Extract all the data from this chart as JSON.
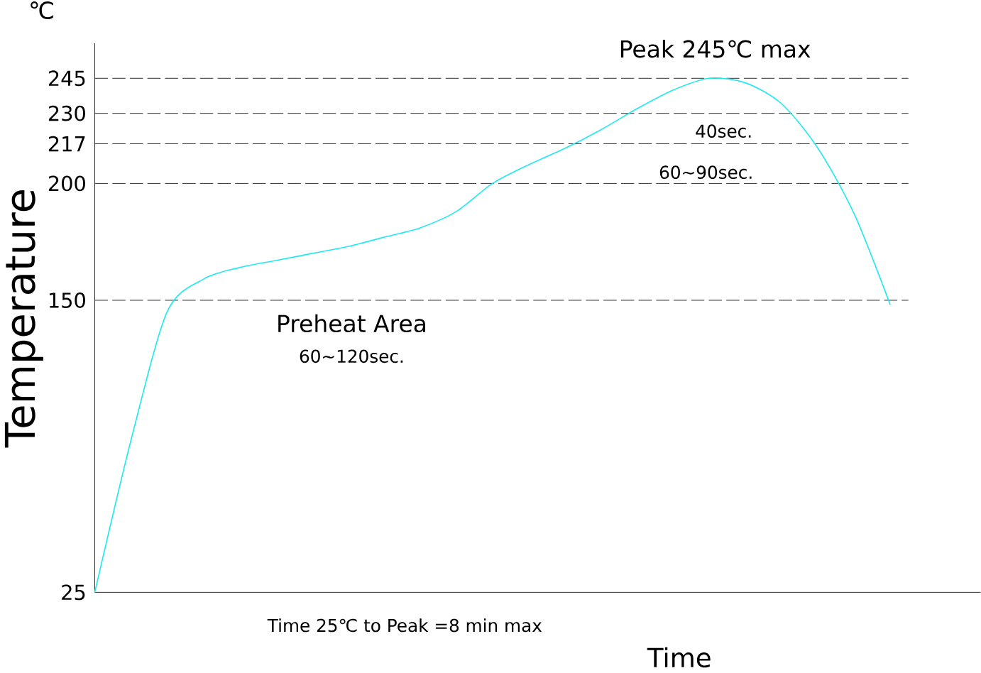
{
  "chart_data": {
    "type": "line",
    "xlabel": "Time",
    "ylabel": "Temperature",
    "categories": [
      null,
      null,
      null,
      null,
      null,
      null,
      null,
      null,
      null,
      null,
      null,
      null,
      null,
      null,
      null,
      null,
      null,
      null,
      null,
      null,
      null,
      null,
      null
    ],
    "series": [
      {
        "color": "#22e8f0",
        "values": [
          25,
          90,
          145,
          159,
          164,
          167,
          170,
          173,
          177,
          181,
          188,
          200,
          208,
          215,
          223,
          232,
          240,
          245,
          243,
          234,
          215,
          187,
          148
        ]
      }
    ],
    "ylim": [
      25,
      260
    ],
    "yticks": [
      25,
      150,
      200,
      217,
      230,
      245
    ],
    "ref_lines": [
      {
        "axis": "y",
        "value": 245,
        "line_style": "dashed",
        "color": "#000000"
      },
      {
        "axis": "y",
        "value": 230,
        "line_style": "dashed",
        "color": "#000000"
      },
      {
        "axis": "y",
        "value": 217,
        "line_style": "dashed",
        "color": "#000000"
      },
      {
        "axis": "y",
        "value": 200,
        "line_style": "dashed",
        "color": "#000000"
      },
      {
        "axis": "y",
        "value": 150,
        "line_style": "dashed",
        "color": "#000000"
      }
    ],
    "annotations": [
      "℃",
      "Peak 245℃ max",
      "40sec.",
      "60~90sec.",
      "Preheat Area",
      "60~120sec.",
      "Time 25℃ to Peak =8 min max"
    ],
    "tick_labels": "y",
    "grid": false,
    "marker": "none",
    "line_style": "solid"
  }
}
